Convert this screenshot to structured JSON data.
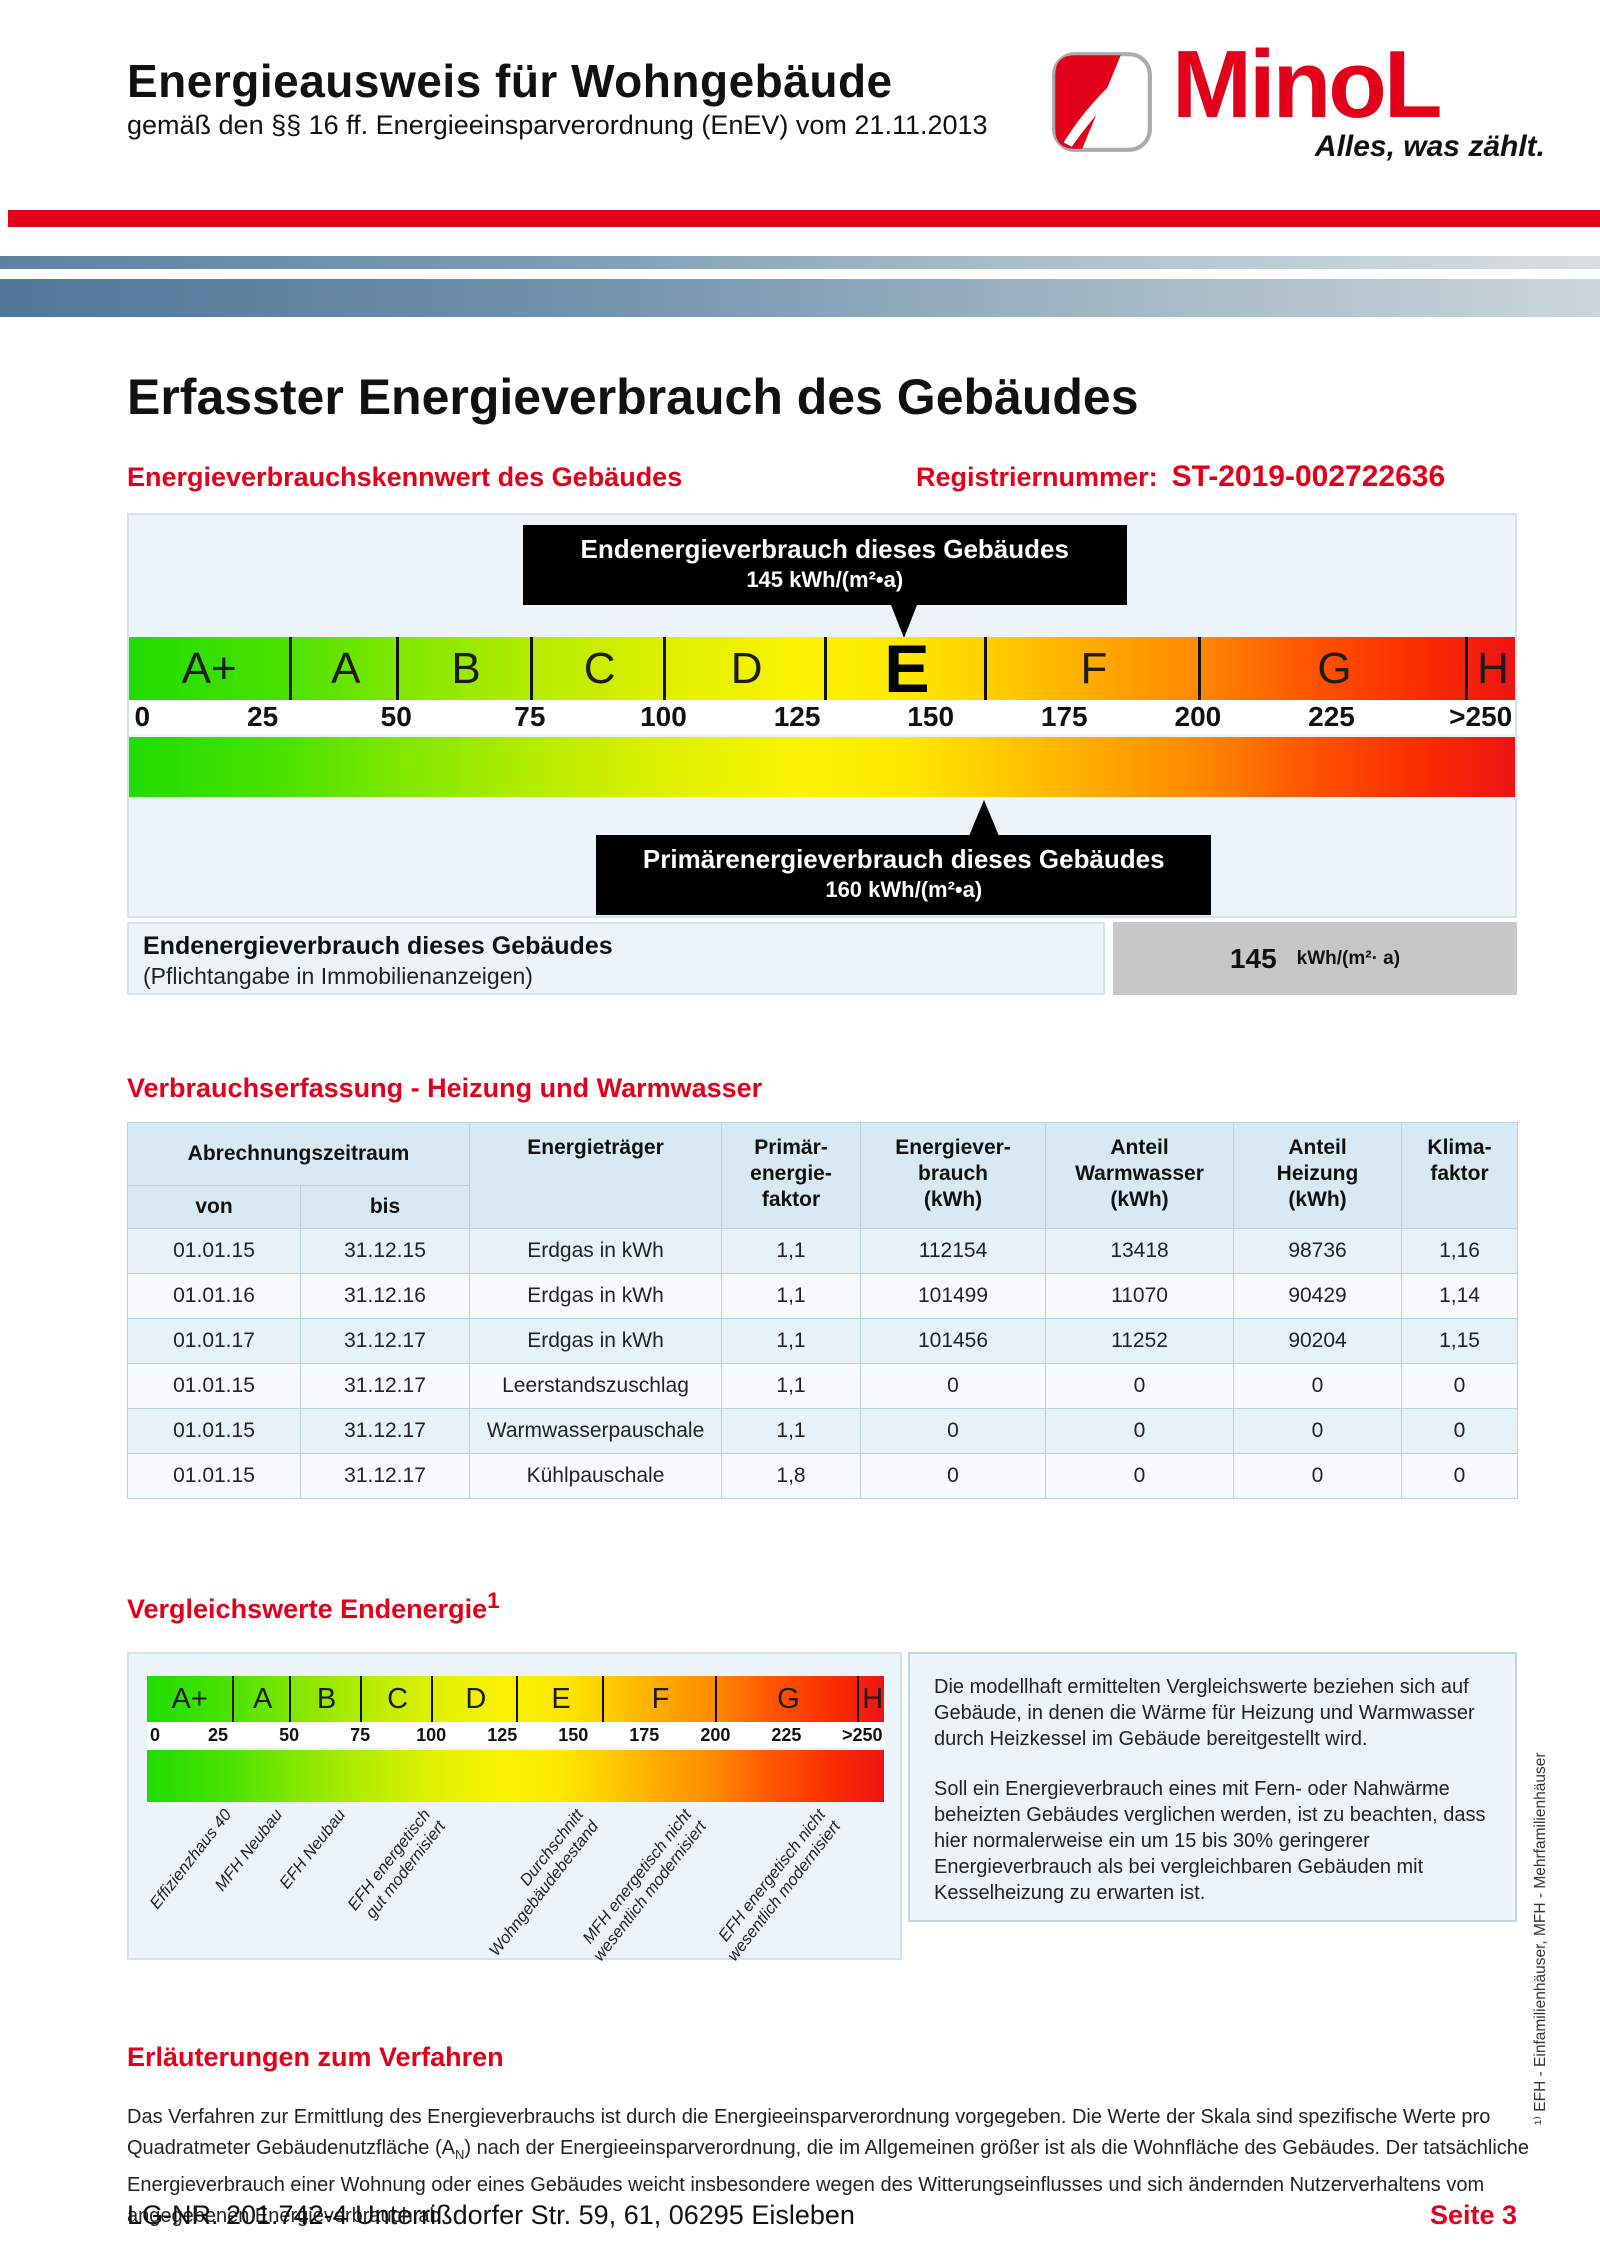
{
  "brand": {
    "red": "#e2001a"
  },
  "header": {
    "title": "Energieausweis für Wohngebäude",
    "subtitle": "gemäß den §§ 16 ff. Energieeinsparverordnung (EnEV) vom 21.11.2013",
    "logo_word": "MinoL",
    "logo_tagline": "Alles, was zählt."
  },
  "intro": {
    "page_title": "Erfasster Energieverbrauch des Gebäudes",
    "kennwert_label": "Energieverbrauchskennwert des Gebäudes",
    "registry_label": "Registriernummer:",
    "registry_value": "ST-2019-002722636"
  },
  "scale": {
    "max_value": 250,
    "classes": [
      {
        "label": "A+",
        "from": 0,
        "to": 30
      },
      {
        "label": "A",
        "from": 30,
        "to": 50
      },
      {
        "label": "B",
        "from": 50,
        "to": 75
      },
      {
        "label": "C",
        "from": 75,
        "to": 100
      },
      {
        "label": "D",
        "from": 100,
        "to": 130
      },
      {
        "label": "E",
        "from": 130,
        "to": 160,
        "current": true
      },
      {
        "label": "F",
        "from": 160,
        "to": 200
      },
      {
        "label": "G",
        "from": 200,
        "to": 250
      },
      {
        "label": "H",
        "from": 250,
        "to": null
      }
    ],
    "ticks": [
      {
        "label": "0",
        "value": 0,
        "align": "left"
      },
      {
        "label": "25",
        "value": 25
      },
      {
        "label": "50",
        "value": 50
      },
      {
        "label": "75",
        "value": 75
      },
      {
        "label": "100",
        "value": 100
      },
      {
        "label": "125",
        "value": 125
      },
      {
        "label": "150",
        "value": 150
      },
      {
        "label": "175",
        "value": 175
      },
      {
        "label": "200",
        "value": 200
      },
      {
        "label": "225",
        "value": 225
      },
      {
        "label": ">250",
        "align": "right"
      }
    ],
    "end_callout": {
      "title": "Endenergieverbrauch dieses Gebäudes",
      "value": 145,
      "value_text": "145 kWh/(m²•a)"
    },
    "primary_callout": {
      "title": "Primärenergieverbrauch dieses Gebäudes",
      "value": 160,
      "value_text": "160 kWh/(m²•a)"
    },
    "result_row": {
      "label": "Endenergieverbrauch dieses Gebäudes",
      "sublabel": "(Pflichtangabe in Immobilienanzeigen)",
      "value": "145",
      "unit": "kWh/(m²· a)"
    }
  },
  "consumption_table": {
    "heading": "Verbrauchserfassung - Heizung und Warmwasser",
    "col_group_label": "Abrechnungszeitraum",
    "col_von": "von",
    "col_bis": "bis",
    "columns": [
      "Energieträger",
      "Primär-\nenergie-\nfaktor",
      "Energiever-\nbrauch\n(kWh)",
      "Anteil\nWarmwasser\n(kWh)",
      "Anteil\nHeizung\n(kWh)",
      "Klima-\nfaktor"
    ],
    "rows": [
      [
        "01.01.15",
        "31.12.15",
        "Erdgas in kWh",
        "1,1",
        "112154",
        "13418",
        "98736",
        "1,16"
      ],
      [
        "01.01.16",
        "31.12.16",
        "Erdgas in kWh",
        "1,1",
        "101499",
        "11070",
        "90429",
        "1,14"
      ],
      [
        "01.01.17",
        "31.12.17",
        "Erdgas in kWh",
        "1,1",
        "101456",
        "11252",
        "90204",
        "1,15"
      ],
      [
        "01.01.15",
        "31.12.17",
        "Leerstandszuschlag",
        "1,1",
        "0",
        "0",
        "0",
        "0"
      ],
      [
        "01.01.15",
        "31.12.17",
        "Warmwasserpauschale",
        "1,1",
        "0",
        "0",
        "0",
        "0"
      ],
      [
        "01.01.15",
        "31.12.17",
        "Kühlpauschale",
        "1,8",
        "0",
        "0",
        "0",
        "0"
      ]
    ]
  },
  "comparison": {
    "heading": "Vergleichswerte Endenergie",
    "heading_sup": "1",
    "labels": [
      {
        "text": "Effizienzhaus 40",
        "value": 26
      },
      {
        "text": "MFH Neubau",
        "value": 44
      },
      {
        "text": "EFH Neubau",
        "value": 66
      },
      {
        "text": "EFH energetisch\ngut modernisiert",
        "value": 96
      },
      {
        "text": "Durchschnitt\nWohngebäudebestand",
        "value": 150
      },
      {
        "text": "MFH energetisch nicht\nwesentlich modernisiert",
        "value": 188
      },
      {
        "text": "EFH energetisch nicht\nwesentlich modernisiert",
        "value": 235
      }
    ],
    "text_p1": "Die modellhaft ermittelten Vergleichswerte beziehen sich auf Gebäude, in denen die Wärme für Heizung und Warmwasser durch Heizkessel im Gebäude bereitgestellt wird.",
    "text_p2": "Soll ein Energieverbrauch eines mit Fern- oder Nahwärme beheizten Gebäudes verglichen werden, ist zu beachten, dass hier normalerweise ein um 15 bis 30% geringerer Energieverbrauch als bei vergleichbaren Gebäuden mit Kesselheizung zu erwarten ist."
  },
  "sidebar_note": "¹⁾ EFH  -  Einfamilienhäuser, MFH  -  Mehrfamilienhäuser",
  "explanation": {
    "heading": "Erläuterungen zum Verfahren",
    "body_before_sub": "Das Verfahren zur Ermittlung des Energieverbrauchs ist durch die Energieeinsparverordnung vorgegeben. Die Werte der Skala sind spezifische Werte pro Quadratmeter Gebäudenutzfläche (A",
    "body_sub": "N",
    "body_after_sub": ") nach der Energieeinsparverordnung, die im Allgemeinen größer ist als die Wohnfläche des Gebäudes. Der tatsächliche Energieverbrauch einer Wohnung oder eines Gebäudes weicht insbesondere wegen des Witterungseinflusses und sich ändernden Nutzerverhaltens vom angegebenen Energieverbrauch ab."
  },
  "footer": {
    "left": "LG-NR. 201.742-4 Unterrißdorfer Str. 59, 61, 06295 Eisleben",
    "page": "Seite 3"
  }
}
